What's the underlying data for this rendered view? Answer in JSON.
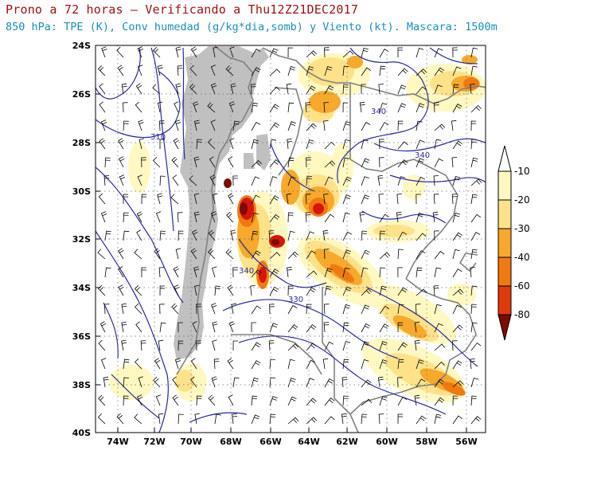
{
  "title_line1": "Prono a 72 horas – Verificando a Thu12Z21DEC2017",
  "title_line2": "850 hPa: TPE (K), Conv humedad (g/kg*dia,somb) y Viento (kt). Mascara: 1500m",
  "lon_labels": [
    "74W",
    "72W",
    "70W",
    "68W",
    "66W",
    "64W",
    "62W",
    "60W",
    "58W",
    "56W"
  ],
  "lat_labels": [
    "24S",
    "26S",
    "28S",
    "30S",
    "32S",
    "34S",
    "36S",
    "38S",
    "40S"
  ],
  "contour_labels": [
    "310",
    "340",
    "340",
    "340",
    "330"
  ],
  "colorbar": {
    "labels": [
      "-10",
      "-20",
      "-30",
      "-40",
      "-60",
      "-80"
    ],
    "colors": [
      "#fff8c0",
      "#fde28a",
      "#f7a92c",
      "#f07a10",
      "#e03a0a",
      "#d81508",
      "#7c0a00"
    ]
  },
  "colors": {
    "mask": "#c0c0c0",
    "coast": "#808080",
    "contour": "#2a2aa0",
    "barb": "#000000"
  }
}
